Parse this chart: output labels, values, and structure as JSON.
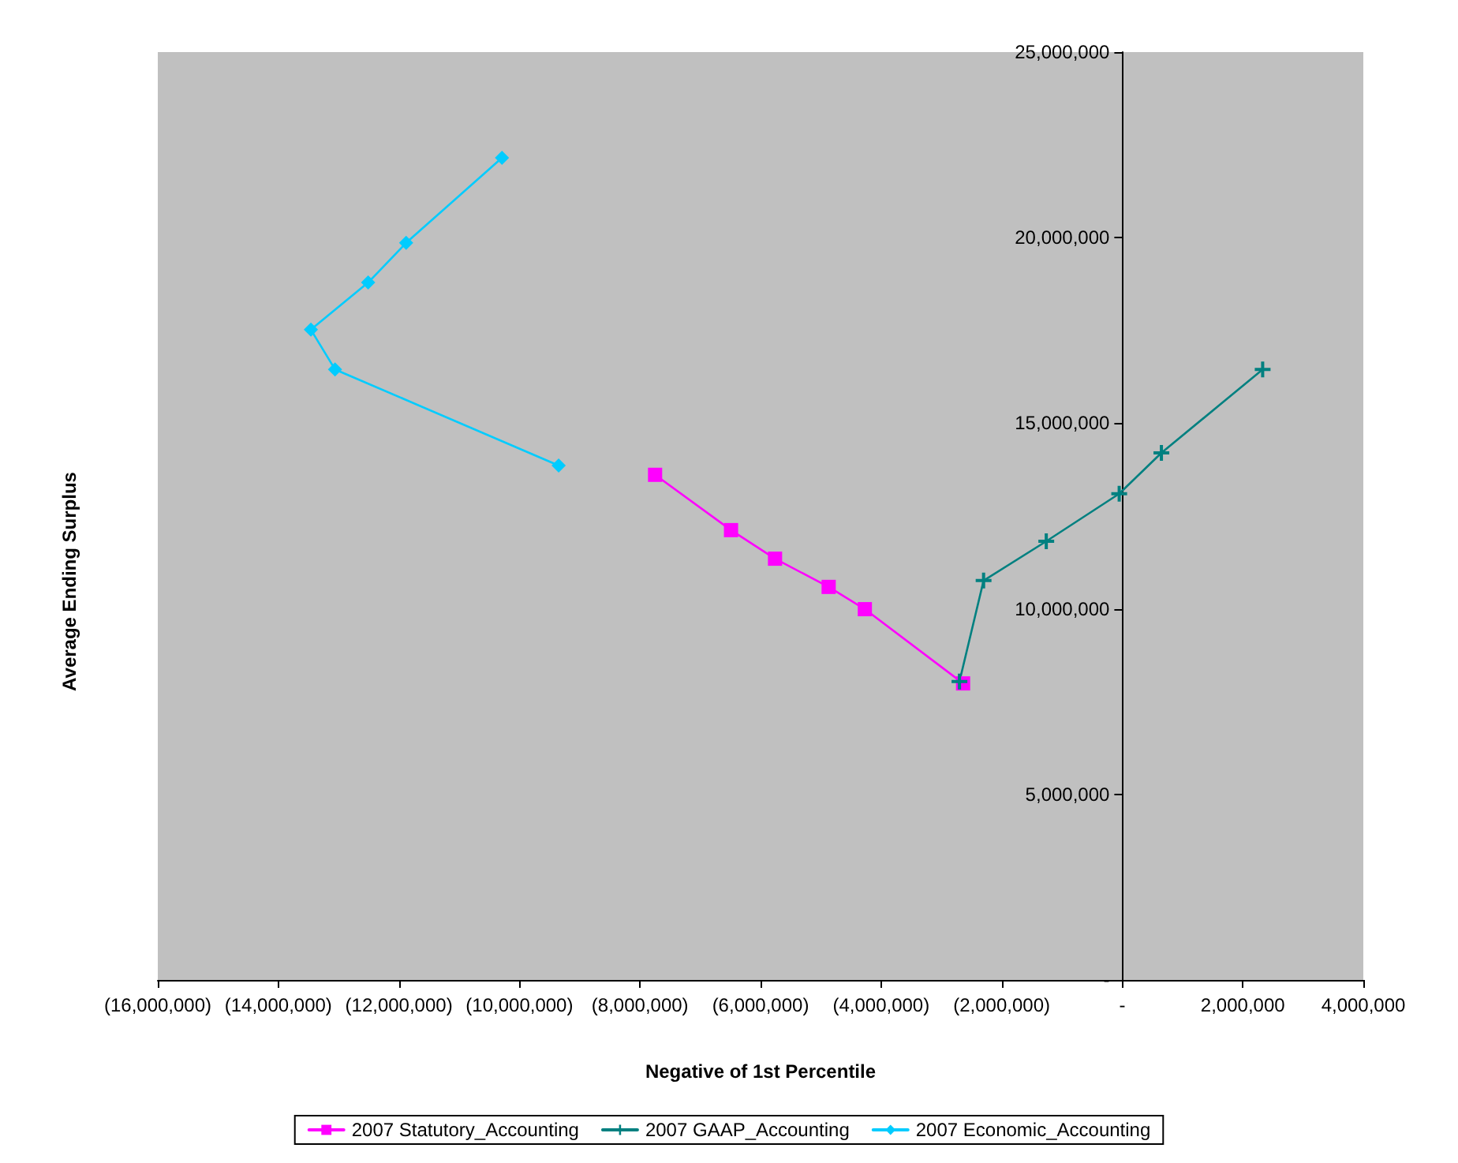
{
  "chart_data": {
    "type": "line",
    "xlabel": "Negative of 1st Percentile",
    "ylabel": "Average Ending Surplus",
    "xlim": [
      -16000000,
      4000000
    ],
    "xticks": [
      {
        "value": -16000000,
        "label": "(16,000,000)"
      },
      {
        "value": -14000000,
        "label": "(14,000,000)"
      },
      {
        "value": -12000000,
        "label": "(12,000,000)"
      },
      {
        "value": -10000000,
        "label": "(10,000,000)"
      },
      {
        "value": -8000000,
        "label": "(8,000,000)"
      },
      {
        "value": -6000000,
        "label": "(6,000,000)"
      },
      {
        "value": -4000000,
        "label": "(4,000,000)"
      },
      {
        "value": -2000000,
        "label": "(2,000,000)"
      },
      {
        "value": 0,
        "label": "-"
      },
      {
        "value": 2000000,
        "label": "2,000,000"
      },
      {
        "value": 4000000,
        "label": "4,000,000"
      }
    ],
    "ylim": [
      0,
      25000000
    ],
    "yticks": [
      {
        "value": 0,
        "label": "-"
      },
      {
        "value": 5000000,
        "label": "5,000,000"
      },
      {
        "value": 10000000,
        "label": "10,000,000"
      },
      {
        "value": 15000000,
        "label": "15,000,000"
      },
      {
        "value": 20000000,
        "label": "20,000,000"
      },
      {
        "value": 25000000,
        "label": "25,000,000"
      }
    ],
    "grid": false,
    "legend": "bottom",
    "series": [
      {
        "name": "2007 Statutory_Accounting",
        "color": "#ff00ff",
        "marker": "square",
        "x": [
          -7750000,
          -6490000,
          -5760000,
          -4870000,
          -4270000,
          -2640000
        ],
        "values": [
          13610000,
          12120000,
          11350000,
          10590000,
          9990000,
          7990000
        ]
      },
      {
        "name": "2007 GAAP_Accounting",
        "color": "#008080",
        "marker": "cross",
        "x": [
          -2700000,
          -2300000,
          -1260000,
          -50000,
          650000,
          2330000
        ],
        "values": [
          8040000,
          10760000,
          11820000,
          13100000,
          14200000,
          16450000
        ]
      },
      {
        "name": "2007 Economic_Accounting",
        "color": "#00ccff",
        "marker": "diamond",
        "x": [
          -10290000,
          -11880000,
          -12510000,
          -13460000,
          -13060000,
          -9350000
        ],
        "values": [
          22150000,
          19860000,
          18790000,
          17520000,
          16450000,
          13860000
        ]
      }
    ]
  }
}
